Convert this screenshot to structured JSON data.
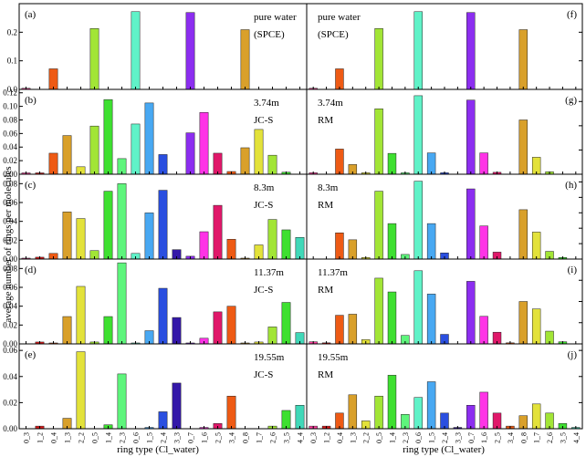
{
  "figure": {
    "ylabel": "average number of rings per molecules",
    "xlabel": "ring type (Cl_water)"
  },
  "chart_data": {
    "type": "bar",
    "ylabel": "average number of rings per molecules",
    "xlabel": "ring type (Cl_water)",
    "categories": [
      "0_3",
      "1_2",
      "0_4",
      "1_3",
      "2_2",
      "0_5",
      "1_4",
      "2_3",
      "0_6",
      "1_5",
      "2_4",
      "3_3",
      "0_7",
      "1_6",
      "2_5",
      "3_4",
      "0_8",
      "1_7",
      "2_6",
      "3_5",
      "4_4"
    ],
    "colors": [
      "#ff3fa0",
      "#dd1a1a",
      "#ee5a14",
      "#d9a02a",
      "#e3e23a",
      "#a2e536",
      "#3ee030",
      "#5ef57c",
      "#60f2c8",
      "#48a8f2",
      "#2a4fe0",
      "#3418a8",
      "#8c2ef0",
      "#ff33e6",
      "#e0186a",
      "#ee5a14",
      "#d9a02a",
      "#e3e23a",
      "#a2e536",
      "#3ee030",
      "#40d8b8"
    ],
    "panels": [
      {
        "id": "(a)",
        "label1": "pure water",
        "label2": "(SPCE)",
        "ylim": [
          0,
          0.3
        ],
        "yticks": [
          0.0,
          0.1,
          0.2
        ],
        "values": [
          0.004,
          0,
          0.072,
          0,
          0,
          0.213,
          0,
          0,
          0.272,
          0,
          0,
          0,
          0.269,
          0,
          0,
          0,
          0.209,
          0,
          0,
          0,
          0
        ]
      },
      {
        "id": "(f)",
        "label1": "pure water",
        "label2": "(SPCE)",
        "ylim": [
          0,
          0.3
        ],
        "yticks": [
          0.0,
          0.1,
          0.2
        ],
        "values": [
          0.004,
          0,
          0.072,
          0,
          0,
          0.213,
          0,
          0,
          0.272,
          0,
          0,
          0,
          0.269,
          0,
          0,
          0,
          0.209,
          0,
          0,
          0,
          0
        ]
      },
      {
        "id": "(b)",
        "label1": "3.74m",
        "label2": "JC-S",
        "ylim": [
          0,
          0.125
        ],
        "yticks": [
          0.0,
          0.02,
          0.04,
          0.06,
          0.08,
          0.1,
          0.12
        ],
        "values": [
          0.002,
          0.002,
          0.031,
          0.057,
          0.011,
          0.071,
          0.11,
          0.023,
          0.074,
          0.105,
          0.029,
          0,
          0.061,
          0.091,
          0.031,
          0.004,
          0.039,
          0.066,
          0.028,
          0.003,
          0
        ]
      },
      {
        "id": "(g)",
        "label1": "3.74m",
        "label2": "RM",
        "ylim": [
          0,
          0.175
        ],
        "yticks": [
          0.0,
          0.05,
          0.1,
          0.15
        ],
        "values": [
          0.003,
          0,
          0.052,
          0.02,
          0.003,
          0.135,
          0.043,
          0.003,
          0.162,
          0.044,
          0.003,
          0,
          0.153,
          0.044,
          0.004,
          0,
          0.112,
          0.035,
          0.005,
          0,
          0
        ]
      },
      {
        "id": "(c)",
        "label1": "8.3m",
        "label2": "JC-S",
        "ylim": [
          0,
          0.09
        ],
        "yticks": [
          0.0,
          0.02,
          0.04,
          0.06,
          0.08
        ],
        "values": [
          0.001,
          0.002,
          0.006,
          0.05,
          0.043,
          0.009,
          0.072,
          0.08,
          0.006,
          0.049,
          0.073,
          0.01,
          0.003,
          0.029,
          0.057,
          0.021,
          0.001,
          0.015,
          0.042,
          0.031,
          0.023
        ]
      },
      {
        "id": "(h)",
        "label1": "8.3m",
        "label2": "RM",
        "ylim": [
          0,
          0.11
        ],
        "yticks": [
          0.0,
          0.02,
          0.04,
          0.06,
          0.08,
          0.1
        ],
        "values": [
          0,
          0,
          0.034,
          0.025,
          0.002,
          0.088,
          0.046,
          0.006,
          0.101,
          0.046,
          0.008,
          0,
          0.091,
          0.043,
          0.009,
          0,
          0.064,
          0.035,
          0.01,
          0.002,
          0
        ]
      },
      {
        "id": "(d)",
        "label1": "11.37m",
        "label2": "JC-S",
        "ylim": [
          0,
          0.09
        ],
        "yticks": [
          0.0,
          0.02,
          0.04,
          0.06,
          0.08
        ],
        "values": [
          0,
          0.002,
          0.001,
          0.029,
          0.061,
          0.002,
          0.029,
          0.086,
          0.001,
          0.014,
          0.059,
          0.028,
          0.001,
          0.006,
          0.034,
          0.04,
          0.001,
          0.002,
          0.018,
          0.044,
          0.012
        ]
      },
      {
        "id": "(i)",
        "label1": "11.37m",
        "label2": "RM",
        "ylim": [
          0,
          0.08
        ],
        "yticks": [
          0.0,
          0.02,
          0.04,
          0.06
        ],
        "values": [
          0.002,
          0.001,
          0.027,
          0.028,
          0.004,
          0.062,
          0.049,
          0.008,
          0.069,
          0.047,
          0.009,
          0,
          0.059,
          0.026,
          0.011,
          0.001,
          0.04,
          0.033,
          0.012,
          0.002,
          0
        ]
      },
      {
        "id": "(e)",
        "label1": "19.55m",
        "label2": "JC-S",
        "ylim": [
          0,
          0.065
        ],
        "yticks": [
          0.0,
          0.02,
          0.04,
          0.06
        ],
        "values": [
          0,
          0.002,
          0,
          0.008,
          0.059,
          0,
          0.003,
          0.042,
          0,
          0.001,
          0.013,
          0.035,
          0,
          0.001,
          0.004,
          0.025,
          0,
          0,
          0.002,
          0.014,
          0.018
        ]
      },
      {
        "id": "(j)",
        "label1": "19.55m",
        "label2": "RM",
        "ylim": [
          0,
          0.065
        ],
        "yticks": [
          0.0,
          0.02,
          0.04,
          0.06
        ],
        "values": [
          0.002,
          0.002,
          0.012,
          0.026,
          0.006,
          0.025,
          0.041,
          0.011,
          0.024,
          0.036,
          0.012,
          0.001,
          0.018,
          0.028,
          0.012,
          0.002,
          0.01,
          0.019,
          0.012,
          0.004,
          0.001
        ]
      }
    ]
  }
}
